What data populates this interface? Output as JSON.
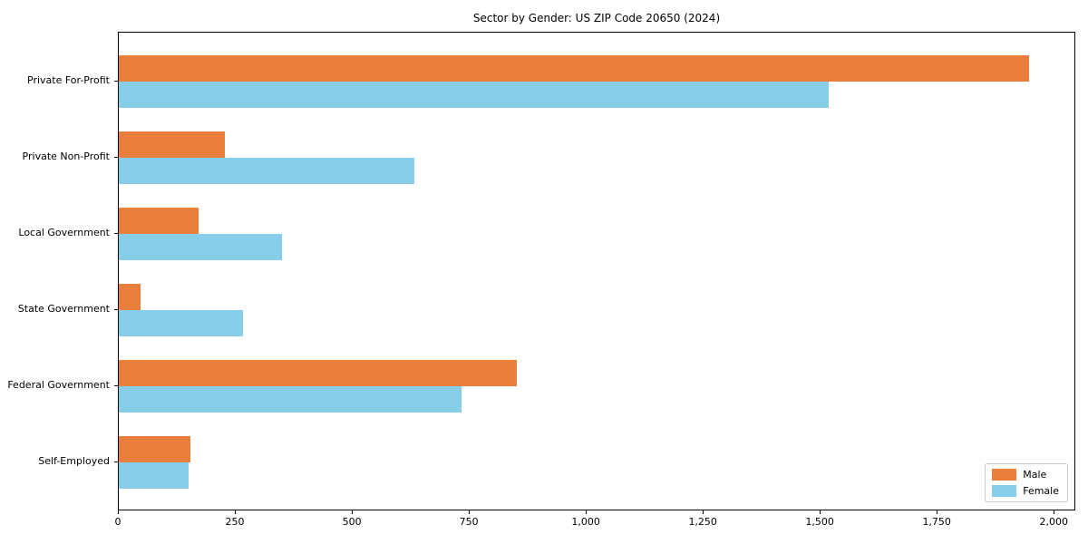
{
  "title": "Sector by Gender: US ZIP Code 20650 (2024)",
  "colors": {
    "male": "#e87d3c",
    "female": "#87ceeb",
    "spine": "#000000",
    "text": "#000000",
    "legend_border": "#cccccc",
    "background": "#ffffff"
  },
  "legend": {
    "position": "lower right",
    "items": [
      {
        "label": "Male"
      },
      {
        "label": "Female"
      }
    ]
  },
  "chart_data": {
    "type": "bar",
    "orientation": "horizontal",
    "title": "Sector by Gender: US ZIP Code 20650 (2024)",
    "categories": [
      "Private For-Profit",
      "Private Non-Profit",
      "Local Government",
      "State Government",
      "Federal Government",
      "Self-Employed"
    ],
    "series": [
      {
        "name": "Male",
        "color": "#e87d3c",
        "values": [
          1945,
          226,
          170,
          47,
          850,
          152
        ]
      },
      {
        "name": "Female",
        "color": "#87ceeb",
        "values": [
          1516,
          631,
          348,
          266,
          733,
          150
        ]
      }
    ],
    "xlabel": "",
    "ylabel": "",
    "xlim": [
      0,
      2046
    ],
    "xticks": [
      0,
      250,
      500,
      750,
      1000,
      1250,
      1500,
      1750,
      2000
    ],
    "xtick_labels": [
      "0",
      "250",
      "500",
      "750",
      "1,000",
      "1,250",
      "1,500",
      "1,750",
      "2,000"
    ],
    "grid": false,
    "legend_position": "lower right"
  }
}
